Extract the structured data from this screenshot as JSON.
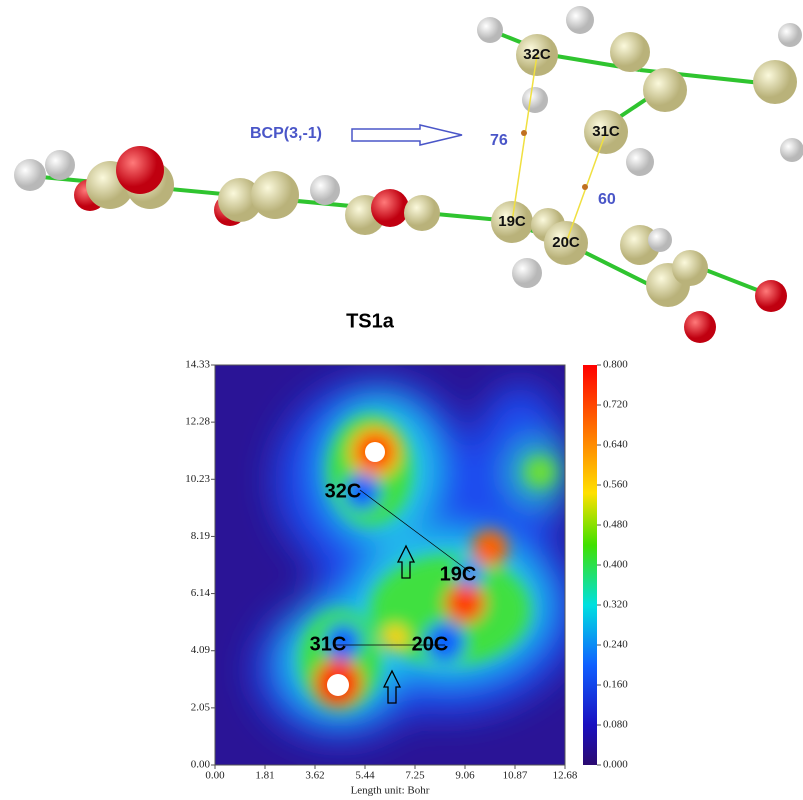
{
  "molecule": {
    "bcp_label": "BCP(3,-1)",
    "atoms": [
      "32C",
      "31C",
      "19C",
      "20C"
    ],
    "distances": [
      "76",
      "60"
    ],
    "title": "TS1a"
  },
  "map": {
    "x_ticks": [
      "0.00",
      "1.81",
      "3.62",
      "5.44",
      "7.25",
      "9.06",
      "10.87",
      "12.68"
    ],
    "y_ticks": [
      "14.33",
      "12.28",
      "10.23",
      "8.19",
      "6.14",
      "4.09",
      "2.05",
      "0.00"
    ],
    "x_label": "Length unit: Bohr",
    "colorbar_ticks": [
      "0.800",
      "0.720",
      "0.640",
      "0.560",
      "0.480",
      "0.400",
      "0.320",
      "0.240",
      "0.160",
      "0.080",
      "0.000"
    ],
    "atoms": [
      "32C",
      "19C",
      "31C",
      "20C"
    ]
  }
}
